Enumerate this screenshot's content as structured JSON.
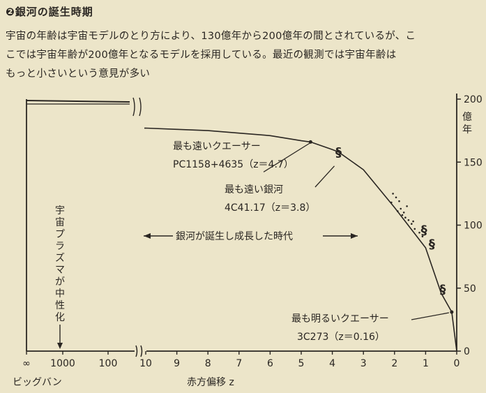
{
  "page": {
    "heading": "❷銀河の誕生時期",
    "desc_lines": [
      "宇宙の年齢は宇宙モデルのとり方により、130億年から200億年の間とされているが、こ",
      "こでは宇宙年齢が200億年となるモデルを採用している。最近の観測では宇宙年齢は",
      "もっと小さいという意見が多い"
    ]
  },
  "chart_data": {
    "type": "line",
    "title": "銀河の誕生時期",
    "xlabel": "赤方偏移 z",
    "x_start_label": "ビッグバン",
    "ylabel": "億年",
    "x_tick_labels": [
      "∞",
      "1000",
      "100",
      "10",
      "9",
      "8",
      "7",
      "6",
      "5",
      "4",
      "3",
      "2",
      "1",
      "0"
    ],
    "y_ticks": [
      0,
      50,
      100,
      150,
      200
    ],
    "ylim": [
      0,
      200
    ],
    "xlim_linear": [
      0,
      10
    ],
    "series": [
      {
        "name": "",
        "x": [
          10,
          9,
          8,
          7,
          6,
          5,
          4.7,
          4,
          3.8,
          3,
          2,
          1,
          0.5,
          0.16,
          0
        ],
        "y": [
          177,
          176,
          175,
          173,
          171,
          167,
          166,
          160,
          158,
          144,
          114,
          82,
          46,
          31,
          0
        ]
      }
    ],
    "points": [
      {
        "label": "最も遠いクエーサー",
        "sub": "PC1158+4635（z＝4.7）",
        "x": 4.7,
        "y": 166
      },
      {
        "label": "最も遠い銀河",
        "sub": "4C41.17（z＝3.8）",
        "x": 3.8,
        "y": 158
      },
      {
        "label": "最も明るいクエーサー",
        "sub": "3C273（z＝0.16）",
        "x": 0.16,
        "y": 31
      }
    ],
    "band_label": "銀河が誕生し成長した時代",
    "plasma_label": "宇宙プラズマが中性化"
  }
}
